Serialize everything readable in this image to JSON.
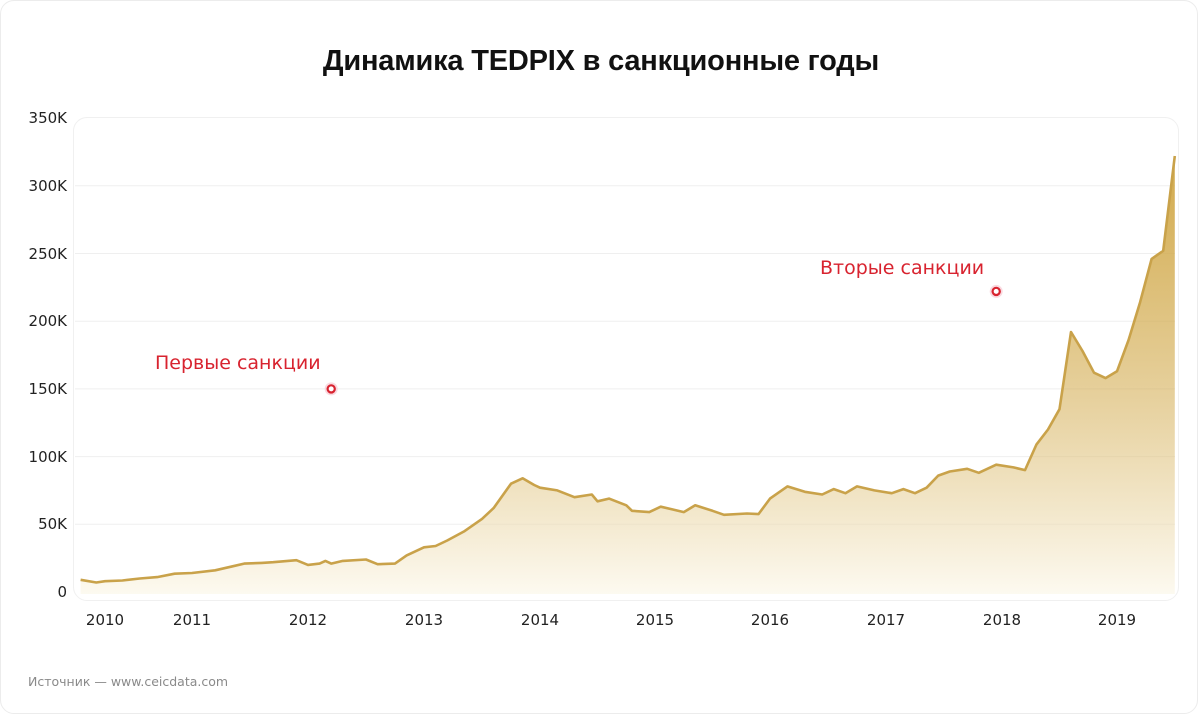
{
  "title": "Динамика TEDPIX в санкционные годы",
  "source": "Источник — www.ceicdata.com",
  "colors": {
    "line": "#c9a24a",
    "fill_top": "#d2aa4c",
    "fill_bottom": "#fbf6e6",
    "annotation": "#d8232f",
    "grid": "#efefef"
  },
  "annotations": [
    {
      "label": "Первые санкции",
      "year": 2012.2,
      "marker_value": 150000
    },
    {
      "label": "Вторые санкции",
      "year": 2017.95,
      "marker_value": 222000
    }
  ],
  "chart_data": {
    "type": "area",
    "title": "Динамика TEDPIX в санкционные годы",
    "xlabel": "",
    "ylabel": "",
    "ylim": [
      0,
      350000
    ],
    "xlim": [
      2009.7,
      2019.5
    ],
    "grid": true,
    "legend": null,
    "y_ticks": [
      "0",
      "50K",
      "100K",
      "150K",
      "200K",
      "250K",
      "300K",
      "350K"
    ],
    "x_ticks": [
      "2010",
      "2011",
      "2012",
      "2013",
      "2014",
      "2015",
      "2016",
      "2017",
      "2018",
      "2019"
    ],
    "series": [
      {
        "name": "TEDPIX",
        "x": [
          2009.72,
          2009.9,
          2010.0,
          2010.2,
          2010.4,
          2010.6,
          2010.8,
          2011.0,
          2011.2,
          2011.35,
          2011.45,
          2011.6,
          2011.7,
          2011.9,
          2012.0,
          2012.1,
          2012.15,
          2012.2,
          2012.3,
          2012.5,
          2012.6,
          2012.75,
          2012.85,
          2013.0,
          2013.1,
          2013.2,
          2013.35,
          2013.5,
          2013.6,
          2013.75,
          2013.85,
          2013.95,
          2014.0,
          2014.15,
          2014.3,
          2014.45,
          2014.5,
          2014.6,
          2014.75,
          2014.8,
          2014.95,
          2015.05,
          2015.15,
          2015.25,
          2015.35,
          2015.5,
          2015.6,
          2015.8,
          2015.9,
          2016.0,
          2016.15,
          2016.3,
          2016.45,
          2016.55,
          2016.65,
          2016.75,
          2016.9,
          2017.05,
          2017.15,
          2017.25,
          2017.35,
          2017.45,
          2017.55,
          2017.7,
          2017.8,
          2017.95,
          2018.1,
          2018.2,
          2018.3,
          2018.4,
          2018.5,
          2018.6,
          2018.7,
          2018.8,
          2018.9,
          2019.0,
          2019.1,
          2019.2,
          2019.3,
          2019.4,
          2019.5
        ],
        "values": [
          9000,
          7000,
          8000,
          8500,
          10000,
          11000,
          13500,
          14000,
          16000,
          19000,
          21000,
          21500,
          22000,
          23500,
          20000,
          21000,
          23000,
          21000,
          23000,
          24000,
          20500,
          21000,
          27000,
          33000,
          34000,
          38000,
          45000,
          54000,
          62000,
          80000,
          84000,
          79000,
          77000,
          75000,
          70000,
          72000,
          67000,
          69000,
          64000,
          60000,
          59000,
          63000,
          61000,
          59000,
          64000,
          60000,
          57000,
          58000,
          57500,
          69000,
          78000,
          74000,
          72000,
          76000,
          73000,
          78000,
          75000,
          73000,
          76000,
          73000,
          77000,
          86000,
          89000,
          91000,
          88000,
          94000,
          92000,
          90000,
          109000,
          120000,
          135000,
          192000,
          178000,
          162000,
          158000,
          163000,
          186000,
          214000,
          246000,
          252000,
          322000
        ]
      }
    ]
  }
}
